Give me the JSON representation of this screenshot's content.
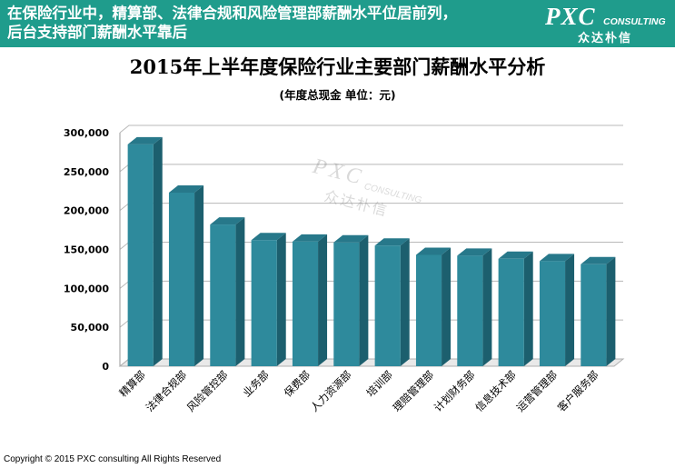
{
  "banner": {
    "line1": "在保险行业中，精算部、法律合规和风险管理部薪酬水平位居前列，",
    "line2": "后台支持部门薪酬水平靠后",
    "logo_main": "PXC",
    "logo_sub": "CONSULTING",
    "logo_cn": "众达朴信"
  },
  "colors": {
    "banner": "#1f9c8c",
    "bar_front": "#2e8a9c",
    "bar_side": "#1c5f6e",
    "bar_top": "#27788a",
    "grid": "#b8b8b8"
  },
  "watermark": {
    "main": "PXC",
    "sub": "CONSULTING",
    "cn": "众达朴信"
  },
  "chart_data": {
    "type": "bar",
    "title": "2015年上半年度保险行业主要部门薪酬水平分析",
    "subtitle": "(年度总现金  单位：元)",
    "categories": [
      "精算部",
      "法律合规部",
      "风险管控部",
      "业务部",
      "保费部",
      "人力资源部",
      "培训部",
      "理赔管理部",
      "计划财务部",
      "信息技术部",
      "运营管理部",
      "客户服务部"
    ],
    "values": [
      285000,
      223000,
      182000,
      162000,
      160000,
      159000,
      155000,
      143000,
      142000,
      138000,
      135000,
      131000
    ],
    "ylim": [
      0,
      300000
    ],
    "yticks": [
      0,
      50000,
      100000,
      150000,
      200000,
      250000,
      300000
    ],
    "ytick_labels": [
      "0",
      "50,000",
      "100,000",
      "150,000",
      "200,000",
      "250,000",
      "300,000"
    ],
    "xlabel": "",
    "ylabel": "",
    "grid": true
  },
  "footer": {
    "copyright": "Copyright © 2015  PXC consulting All Rights Reserved"
  }
}
